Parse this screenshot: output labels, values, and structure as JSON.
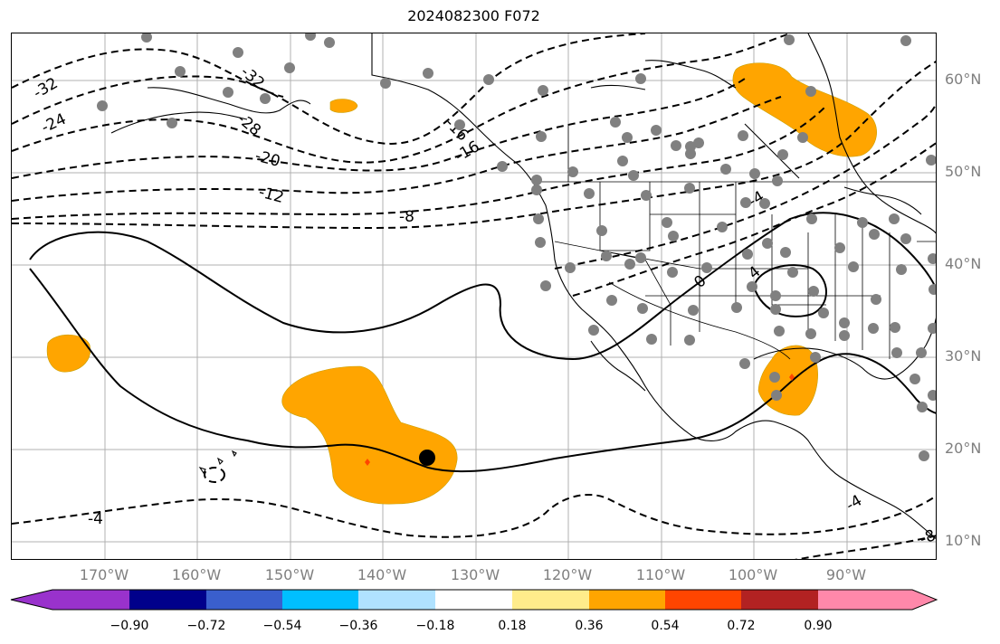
{
  "title": "2024082300 F072",
  "lat_labels": [
    "60°N",
    "50°N",
    "40°N",
    "30°N",
    "20°N",
    "10°N"
  ],
  "lon_labels": [
    "170°W",
    "160°W",
    "150°W",
    "140°W",
    "130°W",
    "120°W",
    "110°W",
    "100°W",
    "90°W"
  ],
  "contour_labels": [
    "-32",
    "-28",
    "-32",
    "-24",
    "-20",
    "-16",
    "-12",
    "-8",
    "-4",
    "-16",
    "-4",
    "0",
    "4",
    "-4",
    "-8"
  ],
  "colorbar": {
    "colors": [
      "#9932CC",
      "#00008B",
      "#3A5FCD",
      "#00BFFF",
      "#B0E2FF",
      "#FFFFFF",
      "#FFEC8B",
      "#FFA500",
      "#FF4500",
      "#B22222",
      "#FF88AA"
    ],
    "ticks": [
      "−0.90",
      "−0.72",
      "−0.54",
      "−0.36",
      "−0.18",
      "0.18",
      "0.36",
      "0.54",
      "0.72",
      "0.90"
    ]
  },
  "colors": {
    "shading": "#FFA500",
    "stations": "#808080",
    "axis_labels": "#7f7f7f",
    "marker": "#000000",
    "highlight": "#FF4500"
  }
}
